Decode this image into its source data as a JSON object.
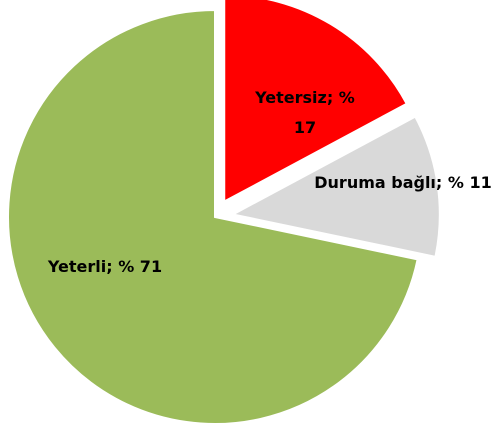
{
  "chart_data": {
    "type": "pie",
    "values": [
      17,
      11,
      71
    ],
    "value_labels": [
      "Yetersiz; % 17",
      "Duruma bağlı; % 11",
      "Yeterli; % 71"
    ],
    "colors": [
      "#ff0000",
      "#d9d9d9",
      "#9bbb59"
    ],
    "exploded": [
      true,
      true,
      false
    ]
  }
}
